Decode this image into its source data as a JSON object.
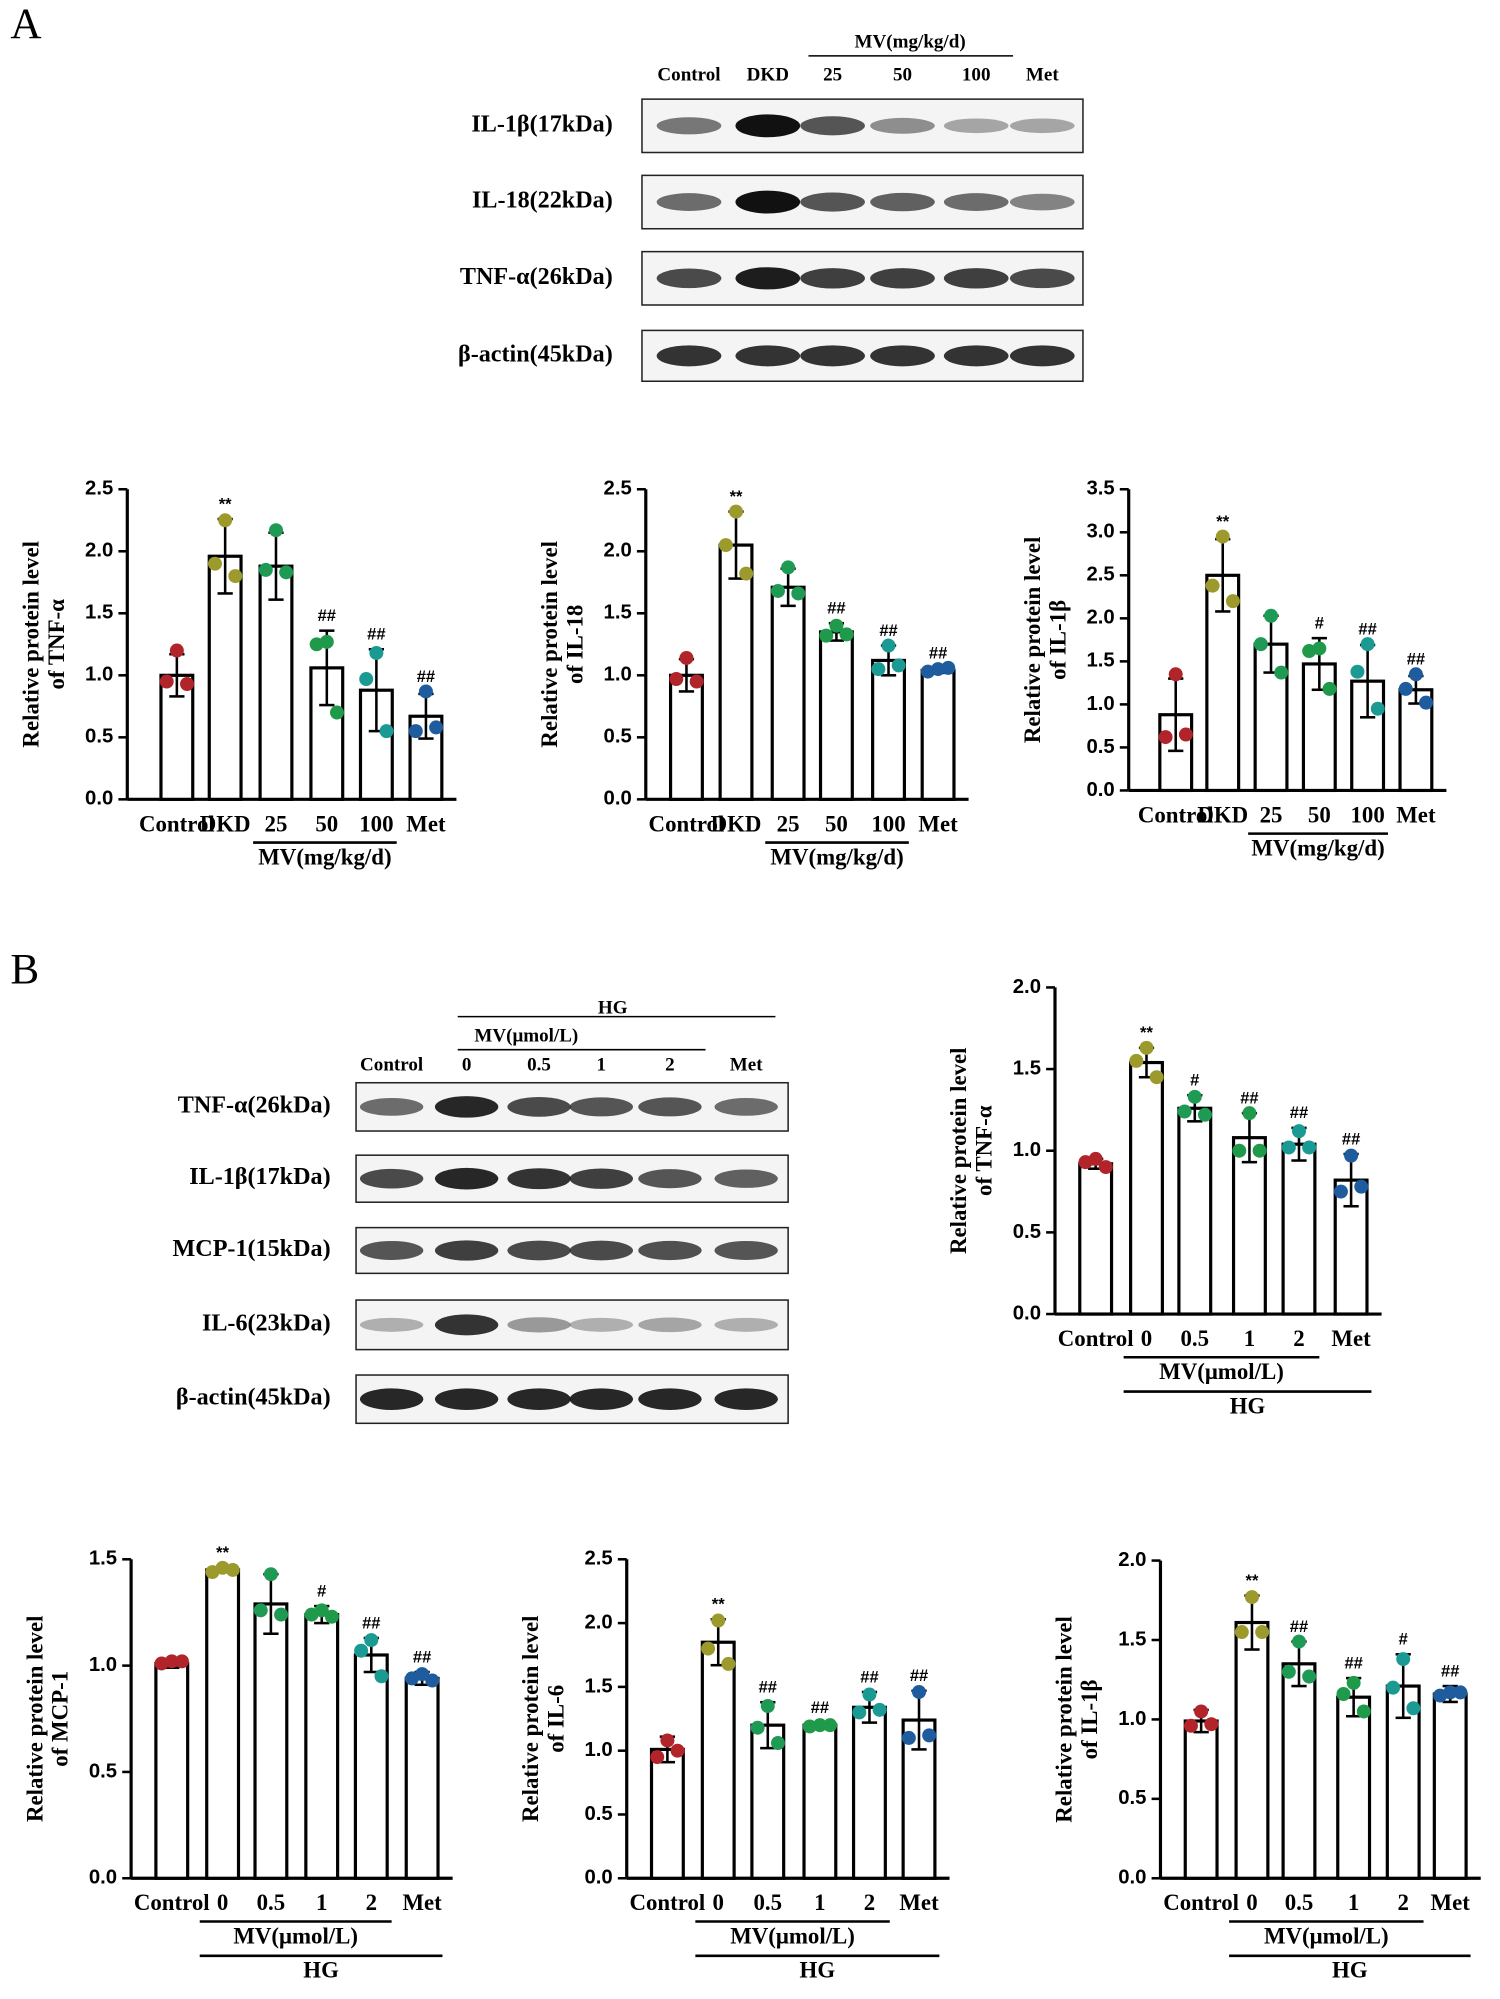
{
  "panels": [
    "A",
    "B"
  ],
  "blots": [
    {
      "group": "MV(mg/kg/d)",
      "lanes": [
        "Control",
        "DKD",
        "25",
        "50",
        "100",
        "Met"
      ],
      "rows": [
        "IL-1β(17kDa)",
        "IL-18(22kDa)",
        "TNF-α(26kDa)",
        "β-actin(45kDa)"
      ]
    },
    {
      "groups": [
        "HG",
        "MV(μmol/L)"
      ],
      "lanes": [
        "Control",
        "0",
        "0.5",
        "1",
        "2",
        "Met"
      ],
      "rows": [
        "TNF-α(26kDa)",
        "IL-1β(17kDa)",
        "MCP-1(15kDa)",
        "IL-6(23kDa)",
        "β-actin(45kDa)"
      ]
    }
  ],
  "chart_data": [
    {
      "type": "bar",
      "y_label": [
        "Relative protein level",
        "of TNF-α"
      ],
      "categories": [
        "Control",
        "DKD",
        "25",
        "50",
        "100",
        "Met"
      ],
      "group_labels": [
        "MV(mg/kg/d)"
      ],
      "values": [
        1.0,
        1.96,
        1.88,
        1.06,
        0.88,
        0.67
      ],
      "errors": [
        0.17,
        0.3,
        0.27,
        0.3,
        0.33,
        0.18
      ],
      "points": [
        [
          1.2,
          0.95,
          0.93
        ],
        [
          2.25,
          1.9,
          1.8
        ],
        [
          2.17,
          1.85,
          1.83
        ],
        [
          1.27,
          1.25,
          0.7
        ],
        [
          1.18,
          0.97,
          0.55
        ],
        [
          0.87,
          0.55,
          0.58
        ]
      ],
      "significance": [
        null,
        "**",
        null,
        "##",
        "##",
        "##"
      ],
      "colors": [
        "#b0242a",
        "#9c9a2c",
        "#1f9a55",
        "#1f9a4a",
        "#1a9a92",
        "#1f5c9e"
      ],
      "ylim": [
        0,
        2.5
      ],
      "yticks": [
        {
          "value": 0,
          "label": "0.0"
        },
        0.5,
        {
          "value": 1,
          "label": "1.0"
        },
        1.5,
        {
          "value": 2,
          "label": "2.0"
        },
        2.5
      ]
    },
    {
      "type": "bar",
      "y_label": [
        "Relative protein level",
        "of IL-18"
      ],
      "categories": [
        "Control",
        "DKD",
        "25",
        "50",
        "100",
        "Met"
      ],
      "group_labels": [
        "MV(mg/kg/d)"
      ],
      "values": [
        1.0,
        2.05,
        1.71,
        1.35,
        1.12,
        1.04
      ],
      "errors": [
        0.13,
        0.27,
        0.15,
        0.07,
        0.12,
        0.02
      ],
      "points": [
        [
          1.14,
          0.97,
          0.95
        ],
        [
          2.32,
          2.05,
          1.82
        ],
        [
          1.87,
          1.68,
          1.66
        ],
        [
          1.4,
          1.32,
          1.33
        ],
        [
          1.24,
          1.05,
          1.08
        ],
        [
          1.05,
          1.03,
          1.06
        ]
      ],
      "significance": [
        null,
        "**",
        null,
        "##",
        "##",
        "##"
      ],
      "colors": [
        "#b0242a",
        "#9c9a2c",
        "#1f9a55",
        "#1f9a4a",
        "#1a9a92",
        "#1f5c9e"
      ],
      "ylim": [
        0,
        2.5
      ],
      "yticks": [
        {
          "value": 0,
          "label": "0.0"
        },
        0.5,
        {
          "value": 1,
          "label": "1.0"
        },
        1.5,
        {
          "value": 2,
          "label": "2.0"
        },
        2.5
      ]
    },
    {
      "type": "bar",
      "y_label": [
        "Relative protein level",
        "of IL-1β"
      ],
      "categories": [
        "Control",
        "DKD",
        "25",
        "50",
        "100",
        "Met"
      ],
      "group_labels": [
        "MV(mg/kg/d)"
      ],
      "values": [
        0.88,
        2.5,
        1.7,
        1.47,
        1.27,
        1.17
      ],
      "errors": [
        0.42,
        0.42,
        0.33,
        0.3,
        0.42,
        0.16
      ],
      "points": [
        [
          1.35,
          0.62,
          0.65
        ],
        [
          2.95,
          2.38,
          2.2
        ],
        [
          2.03,
          1.7,
          1.37
        ],
        [
          1.65,
          1.62,
          1.18
        ],
        [
          1.7,
          1.38,
          0.95
        ],
        [
          1.35,
          1.18,
          1.02
        ]
      ],
      "significance": [
        null,
        "**",
        null,
        "#",
        "##",
        "##"
      ],
      "colors": [
        "#b0242a",
        "#9c9a2c",
        "#1f9a55",
        "#1f9a4a",
        "#1a9a92",
        "#1f5c9e"
      ],
      "ylim": [
        0,
        3.5
      ],
      "yticks": [
        {
          "value": 0,
          "label": "0.0"
        },
        0.5,
        {
          "value": 1,
          "label": "1.0"
        },
        1.5,
        {
          "value": 2,
          "label": "2.0"
        },
        2.5,
        {
          "value": 3,
          "label": "3.0"
        },
        3.5
      ]
    },
    {
      "type": "bar",
      "y_label": [
        "Relative protein level",
        "of TNF-α"
      ],
      "categories": [
        "Control",
        "0",
        "0.5",
        "1",
        "2",
        "Met"
      ],
      "group_labels": [
        "MV(μmol/L)",
        "HG"
      ],
      "values": [
        0.92,
        1.54,
        1.26,
        1.08,
        1.04,
        0.82
      ],
      "errors": [
        0.03,
        0.09,
        0.08,
        0.15,
        0.1,
        0.16
      ],
      "points": [
        [
          0.95,
          0.93,
          0.9
        ],
        [
          1.63,
          1.55,
          1.45
        ],
        [
          1.33,
          1.24,
          1.22
        ],
        [
          1.23,
          1.0,
          1.0
        ],
        [
          1.12,
          1.02,
          1.02
        ],
        [
          0.97,
          0.75,
          0.78
        ]
      ],
      "significance": [
        null,
        "**",
        "#",
        "##",
        "##",
        "##"
      ],
      "colors": [
        "#b0242a",
        "#9c9a2c",
        "#1f9a55",
        "#1f9a4a",
        "#1a9a92",
        "#1f5c9e"
      ],
      "ylim": [
        0,
        2.0
      ],
      "yticks": [
        {
          "value": 0,
          "label": "0.0"
        },
        0.5,
        {
          "value": 1,
          "label": "1.0"
        },
        1.5,
        {
          "value": 2,
          "label": "2.0"
        }
      ]
    },
    {
      "type": "bar",
      "y_label": [
        "Relative protein level",
        "of MCP-1"
      ],
      "categories": [
        "Control",
        "0",
        "0.5",
        "1",
        "2",
        "Met"
      ],
      "group_labels": [
        "MV(μmol/L)",
        "HG"
      ],
      "values": [
        1.01,
        1.45,
        1.29,
        1.24,
        1.05,
        0.94
      ],
      "errors": [
        0.02,
        0.01,
        0.14,
        0.04,
        0.08,
        0.03
      ],
      "points": [
        [
          1.02,
          1.01,
          1.02
        ],
        [
          1.46,
          1.44,
          1.45
        ],
        [
          1.43,
          1.26,
          1.24
        ],
        [
          1.26,
          1.24,
          1.23
        ],
        [
          1.12,
          1.07,
          0.95
        ],
        [
          0.96,
          0.94,
          0.93
        ]
      ],
      "significance": [
        null,
        "**",
        null,
        "#",
        "##",
        "##"
      ],
      "colors": [
        "#b0242a",
        "#9c9a2c",
        "#1f9a55",
        "#1f9a4a",
        "#1a9a92",
        "#1f5c9e"
      ],
      "ylim": [
        0,
        1.5
      ],
      "yticks": [
        {
          "value": 0,
          "label": "0.0"
        },
        0.5,
        {
          "value": 1,
          "label": "1.0"
        },
        1.5
      ]
    },
    {
      "type": "bar",
      "y_label": [
        "Relative protein level",
        "of IL-6"
      ],
      "categories": [
        "Control",
        "0",
        "0.5",
        "1",
        "2",
        "Met"
      ],
      "group_labels": [
        "MV(μmol/L)",
        "HG"
      ],
      "values": [
        1.01,
        1.85,
        1.2,
        1.2,
        1.34,
        1.24
      ],
      "errors": [
        0.1,
        0.18,
        0.18,
        0.02,
        0.12,
        0.23
      ],
      "points": [
        [
          1.08,
          0.95,
          1.0
        ],
        [
          2.02,
          1.8,
          1.68
        ],
        [
          1.35,
          1.18,
          1.06
        ],
        [
          1.2,
          1.19,
          1.2
        ],
        [
          1.44,
          1.3,
          1.32
        ],
        [
          1.46,
          1.1,
          1.12
        ]
      ],
      "significance": [
        null,
        "**",
        "##",
        "##",
        "##",
        "##"
      ],
      "colors": [
        "#b0242a",
        "#9c9a2c",
        "#1f9a55",
        "#1f9a4a",
        "#1a9a92",
        "#1f5c9e"
      ],
      "ylim": [
        0,
        2.5
      ],
      "yticks": [
        {
          "value": 0,
          "label": "0.0"
        },
        0.5,
        {
          "value": 1,
          "label": "1.0"
        },
        1.5,
        {
          "value": 2,
          "label": "2.0"
        },
        2.5
      ]
    },
    {
      "type": "bar",
      "y_label": [
        "Relative protein level",
        "of IL-1β"
      ],
      "categories": [
        "Control",
        "0",
        "0.5",
        "1",
        "2",
        "Met"
      ],
      "group_labels": [
        "MV(μmol/L)",
        "HG"
      ],
      "values": [
        0.99,
        1.61,
        1.35,
        1.14,
        1.21,
        1.16
      ],
      "errors": [
        0.07,
        0.17,
        0.14,
        0.12,
        0.2,
        0.05
      ],
      "points": [
        [
          1.05,
          0.96,
          0.97
        ],
        [
          1.77,
          1.55,
          1.55
        ],
        [
          1.49,
          1.3,
          1.27
        ],
        [
          1.23,
          1.16,
          1.05
        ],
        [
          1.38,
          1.2,
          1.07
        ],
        [
          1.17,
          1.15,
          1.17
        ]
      ],
      "significance": [
        null,
        "**",
        "##",
        "##",
        "#",
        "##"
      ],
      "colors": [
        "#b0242a",
        "#9c9a2c",
        "#1f9a55",
        "#1f9a4a",
        "#1a9a92",
        "#1f5c9e"
      ],
      "ylim": [
        0,
        2.0
      ],
      "yticks": [
        {
          "value": 0,
          "label": "0.0"
        },
        0.5,
        {
          "value": 1,
          "label": "1.0"
        },
        1.5,
        {
          "value": 2,
          "label": "2.0"
        }
      ]
    }
  ]
}
